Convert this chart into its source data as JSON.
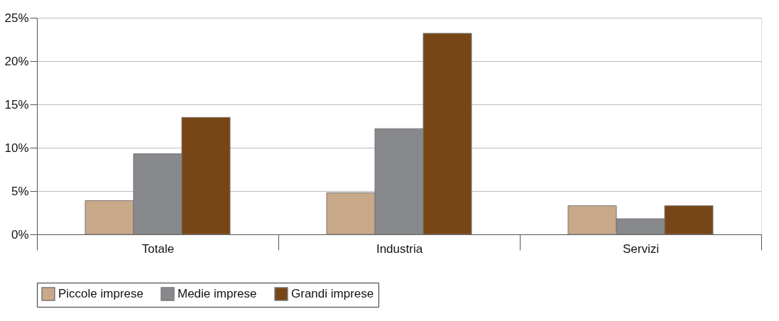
{
  "chart_data": {
    "type": "bar",
    "categories": [
      "Totale",
      "Industria",
      "Servizi"
    ],
    "series": [
      {
        "name": "Piccole imprese",
        "color": "#c8a98a",
        "values": [
          3.9,
          4.8,
          3.3
        ]
      },
      {
        "name": "Medie imprese",
        "color": "#88898c",
        "values": [
          9.3,
          12.2,
          1.8
        ]
      },
      {
        "name": "Grandi imprese",
        "color": "#784616",
        "values": [
          13.5,
          23.2,
          3.3
        ]
      }
    ],
    "ylim": [
      0,
      25
    ],
    "yticks": [
      {
        "value": 0,
        "label": "0%"
      },
      {
        "value": 5,
        "label": "5%"
      },
      {
        "value": 10,
        "label": "10%"
      },
      {
        "value": 15,
        "label": "15%"
      },
      {
        "value": 20,
        "label": "20%"
      },
      {
        "value": 25,
        "label": "25%"
      }
    ],
    "grid": "y",
    "legend": "bottom"
  }
}
